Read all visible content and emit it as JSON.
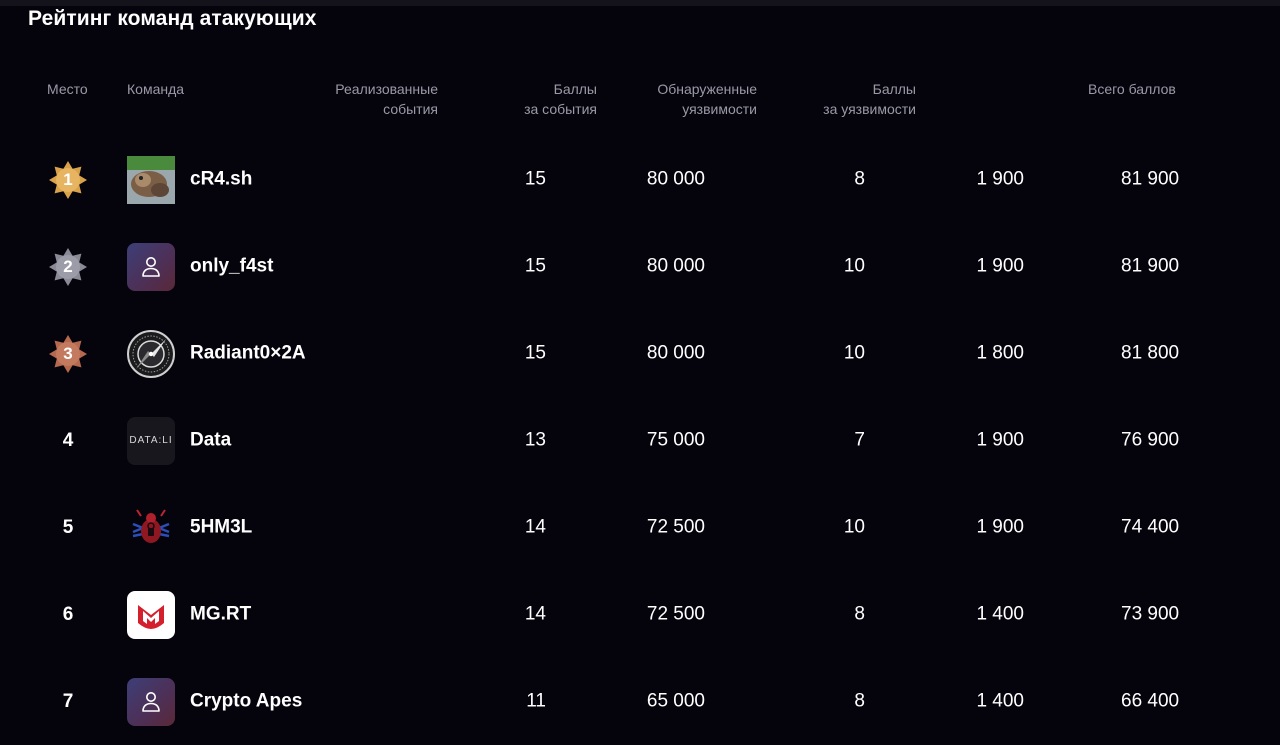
{
  "title": "Рейтинг команд атакующих",
  "columns": {
    "place": "Место",
    "team": "Команда",
    "events": [
      "Реализованные",
      "события"
    ],
    "events_points": [
      "Баллы",
      "за события"
    ],
    "vulns": [
      "Обнаруженные",
      "уязвимости"
    ],
    "vulns_points": [
      "Баллы",
      "за уязвимости"
    ],
    "total": "Всего баллов"
  },
  "rows": [
    {
      "place": "1",
      "team": "cR4.sh",
      "events": "15",
      "events_points": "80 000",
      "vulns": "8",
      "vulns_points": "1 900",
      "total": "81 900",
      "medal": "gold",
      "avatar": "photo"
    },
    {
      "place": "2",
      "team": "only_f4st",
      "events": "15",
      "events_points": "80 000",
      "vulns": "10",
      "vulns_points": "1 900",
      "total": "81 900",
      "medal": "silver",
      "avatar": "user"
    },
    {
      "place": "3",
      "team": "Radiant0×2A",
      "events": "15",
      "events_points": "80 000",
      "vulns": "10",
      "vulns_points": "1 800",
      "total": "81 800",
      "medal": "bronze",
      "avatar": "compass"
    },
    {
      "place": "4",
      "team": "Data",
      "events": "13",
      "events_points": "75 000",
      "vulns": "7",
      "vulns_points": "1 900",
      "total": "76 900",
      "avatar": "data-logo",
      "avatar_text": "DATA:LI"
    },
    {
      "place": "5",
      "team": "5HM3L",
      "events": "14",
      "events_points": "72 500",
      "vulns": "10",
      "vulns_points": "1 900",
      "total": "74 400",
      "avatar": "bug-logo"
    },
    {
      "place": "6",
      "team": "MG.RT",
      "events": "14",
      "events_points": "72 500",
      "vulns": "8",
      "vulns_points": "1 400",
      "total": "73 900",
      "avatar": "mgrt-logo"
    },
    {
      "place": "7",
      "team": "Crypto Apes",
      "events": "11",
      "events_points": "65 000",
      "vulns": "8",
      "vulns_points": "1 400",
      "total": "66 400",
      "avatar": "user"
    }
  ],
  "colors": {
    "background": "#05040d",
    "header_text": "#9a9aa6",
    "gold": "#d9a14a",
    "silver": "#8a8a96",
    "bronze": "#b5694f"
  }
}
